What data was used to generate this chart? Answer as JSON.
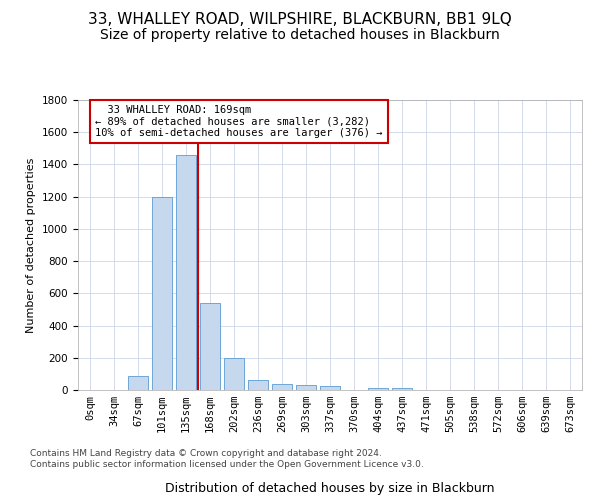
{
  "title": "33, WHALLEY ROAD, WILPSHIRE, BLACKBURN, BB1 9LQ",
  "subtitle": "Size of property relative to detached houses in Blackburn",
  "xlabel": "Distribution of detached houses by size in Blackburn",
  "ylabel": "Number of detached properties",
  "categories": [
    "0sqm",
    "34sqm",
    "67sqm",
    "101sqm",
    "135sqm",
    "168sqm",
    "202sqm",
    "236sqm",
    "269sqm",
    "303sqm",
    "337sqm",
    "370sqm",
    "404sqm",
    "437sqm",
    "471sqm",
    "505sqm",
    "538sqm",
    "572sqm",
    "606sqm",
    "639sqm",
    "673sqm"
  ],
  "values": [
    0,
    0,
    90,
    1200,
    1460,
    540,
    200,
    65,
    40,
    30,
    25,
    0,
    10,
    10,
    0,
    0,
    0,
    0,
    0,
    0,
    0
  ],
  "bar_color": "#c5d8ed",
  "bar_edge_color": "#5b9bd5",
  "vline_color": "#cc0000",
  "vline_pos": 4.5,
  "annotation_text": "  33 WHALLEY ROAD: 169sqm\n← 89% of detached houses are smaller (3,282)\n10% of semi-detached houses are larger (376) →",
  "annotation_box_color": "#ffffff",
  "annotation_box_edge": "#cc0000",
  "ylim": [
    0,
    1800
  ],
  "yticks": [
    0,
    200,
    400,
    600,
    800,
    1000,
    1200,
    1400,
    1600,
    1800
  ],
  "title_fontsize": 11,
  "subtitle_fontsize": 10,
  "xlabel_fontsize": 9,
  "ylabel_fontsize": 8,
  "tick_fontsize": 7.5,
  "footer_line1": "Contains HM Land Registry data © Crown copyright and database right 2024.",
  "footer_line2": "Contains public sector information licensed under the Open Government Licence v3.0.",
  "background_color": "#ffffff",
  "grid_color": "#ccd6e8"
}
